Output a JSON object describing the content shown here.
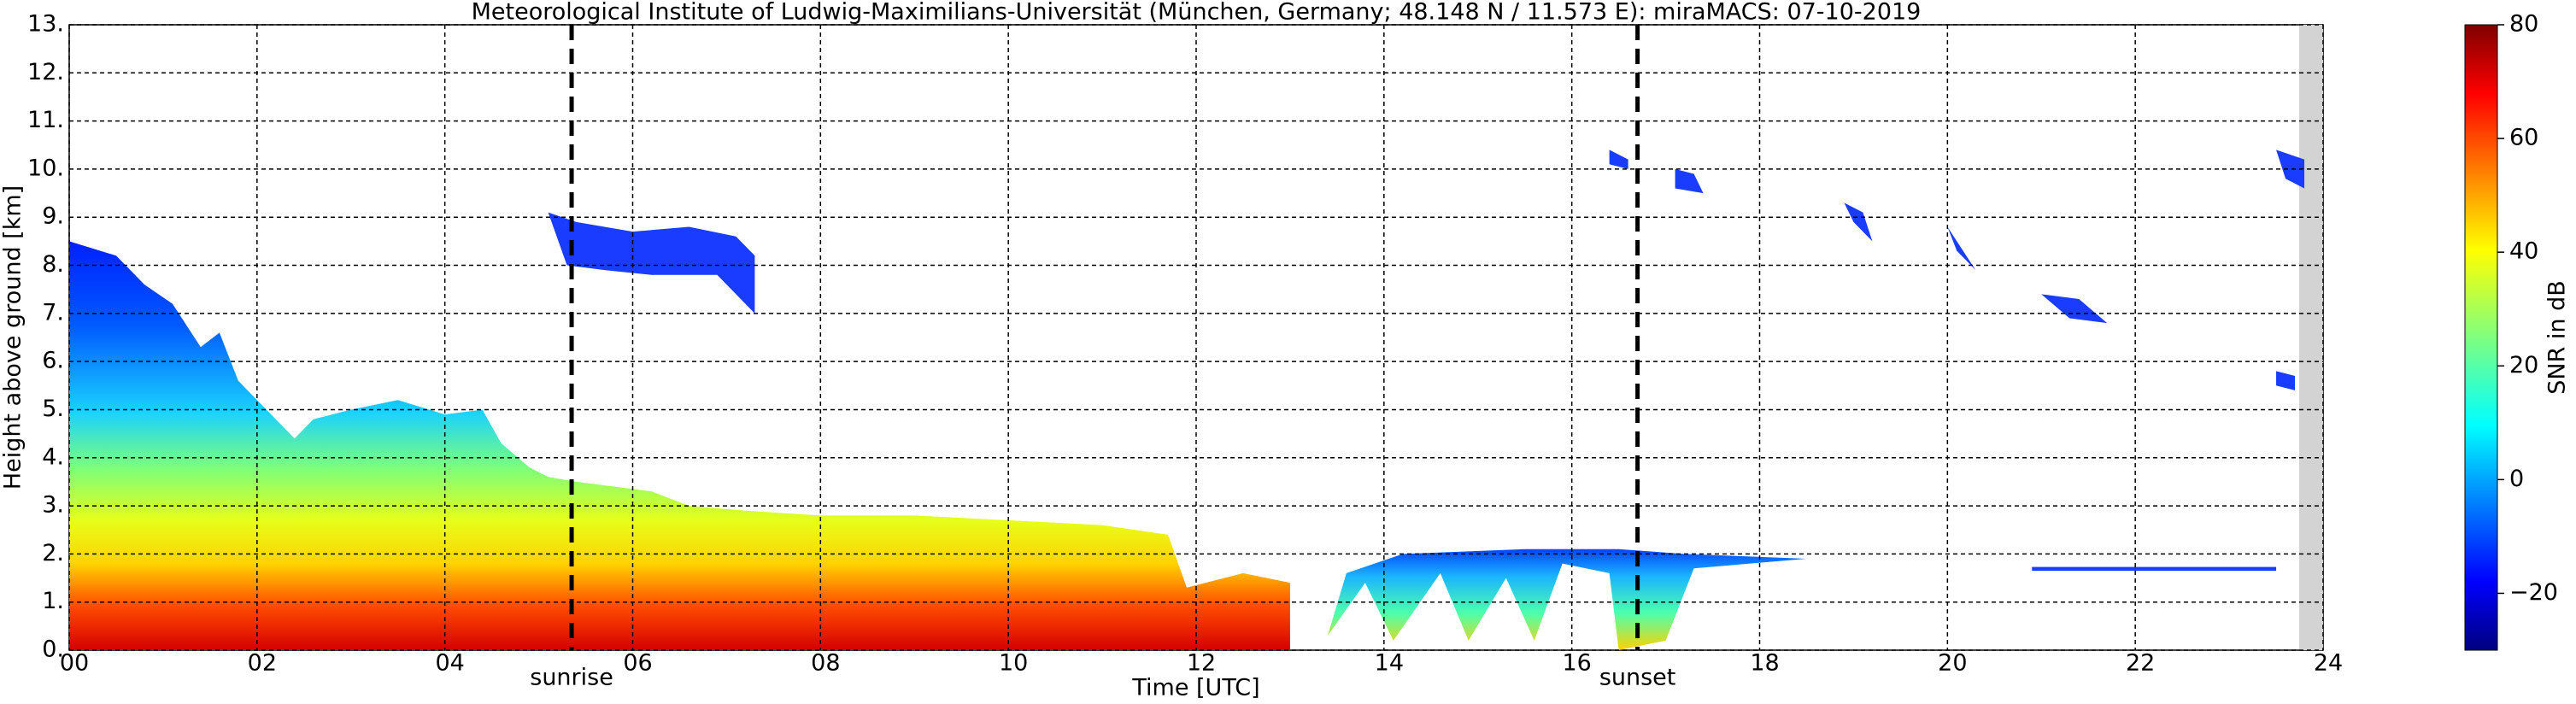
{
  "chart_data": {
    "type": "heatmap",
    "title": "Meteorological Institute of Ludwig-Maximilians-Universität (München, Germany; 48.148 N / 11.573 E):    miraMACS: 07-10-2019",
    "x_label": "Time [UTC]",
    "y_label": "Height above ground [km]",
    "xlim": [
      0,
      24
    ],
    "ylim": [
      0,
      13
    ],
    "xticks": [
      {
        "value": 0,
        "label": "00"
      },
      {
        "value": 2,
        "label": "02"
      },
      {
        "value": 4,
        "label": "04"
      },
      {
        "value": 6,
        "label": "06"
      },
      {
        "value": 8,
        "label": "08"
      },
      10,
      12,
      14,
      16,
      18,
      20,
      22,
      24
    ],
    "yticks": [
      {
        "value": 0,
        "label": "0."
      },
      {
        "value": 1,
        "label": "1."
      },
      {
        "value": 2,
        "label": "2."
      },
      {
        "value": 3,
        "label": "3."
      },
      {
        "value": 4,
        "label": "4."
      },
      {
        "value": 5,
        "label": "5."
      },
      {
        "value": 6,
        "label": "6."
      },
      {
        "value": 7,
        "label": "7."
      },
      {
        "value": 8,
        "label": "8."
      },
      {
        "value": 9,
        "label": "9."
      },
      {
        "value": 10,
        "label": "10."
      },
      {
        "value": 11,
        "label": "11."
      },
      {
        "value": 12,
        "label": "12."
      },
      {
        "value": 13,
        "label": "13."
      }
    ],
    "grid": true,
    "colorbar": {
      "label": "SNR in dB",
      "clim": [
        -30,
        80
      ],
      "ticks": [
        {
          "value": -20,
          "label": "−20"
        },
        0,
        20,
        40,
        60,
        80
      ]
    },
    "annotations": [
      {
        "text": "sunrise",
        "x": 5.35
      },
      {
        "text": "sunset",
        "x": 16.7
      }
    ]
  }
}
